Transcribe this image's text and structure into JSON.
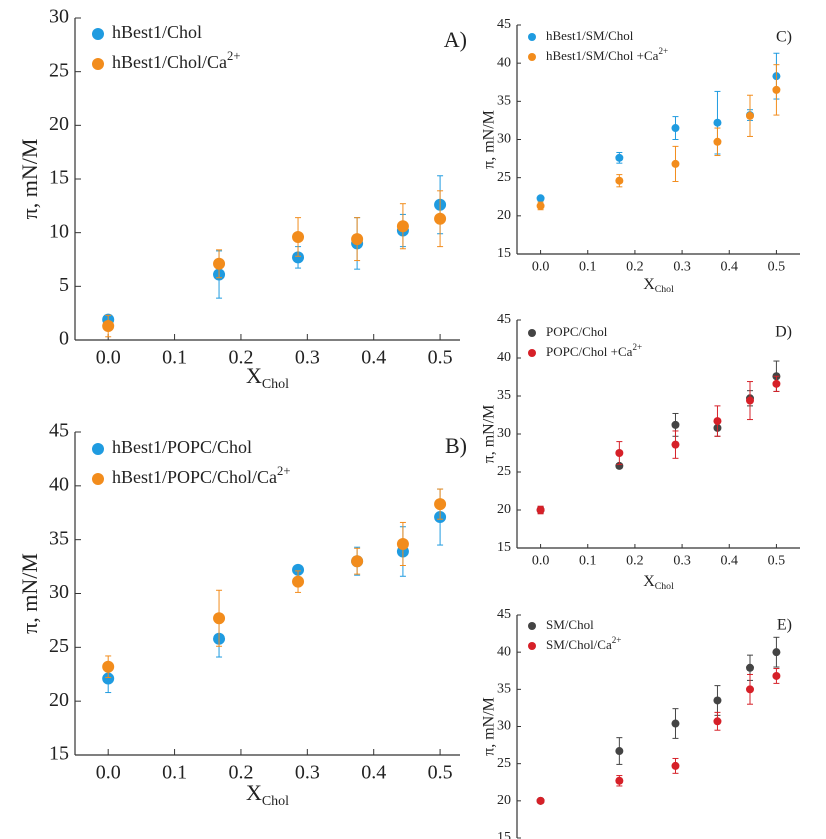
{
  "chart_data": [
    {
      "type": "scatter",
      "annotation": "A)",
      "xlabel": "X",
      "xlabel_sub": "Chol",
      "ylabel": "π, mN/M",
      "x": [
        0,
        0.167,
        0.286,
        0.375,
        0.444,
        0.5
      ],
      "series": [
        {
          "name": "hBest1/Chol",
          "color": "#1f9be0",
          "values": [
            1.9,
            6.1,
            7.7,
            9.0,
            10.2,
            12.6
          ],
          "errors": [
            0.3,
            2.2,
            1.0,
            2.4,
            1.5,
            2.7
          ]
        },
        {
          "name": "hBest1/Chol/Ca",
          "name_sup": "2+",
          "color": "#f28c1c",
          "values": [
            1.3,
            7.1,
            9.6,
            9.4,
            10.6,
            11.3
          ],
          "errors": [
            1.0,
            1.3,
            1.8,
            2.0,
            2.1,
            2.6
          ]
        }
      ],
      "xlim": [
        -0.05,
        0.53
      ],
      "ylim": [
        0,
        30
      ],
      "xticks": [
        {
          "value": 0,
          "label": "0.0"
        },
        0.1,
        0.2,
        0.3,
        0.4,
        0.5
      ],
      "yticks": [
        0,
        5,
        10,
        15,
        20,
        25,
        30
      ]
    },
    {
      "type": "scatter",
      "annotation": "B)",
      "xlabel": "X",
      "xlabel_sub": "Chol",
      "ylabel": "π, mN/M",
      "x": [
        0,
        0.167,
        0.286,
        0.375,
        0.444,
        0.5
      ],
      "series": [
        {
          "name": "hBest1/POPC/Chol",
          "color": "#1f9be0",
          "values": [
            22.1,
            25.8,
            32.2,
            33.0,
            33.9,
            37.1
          ],
          "errors": [
            1.3,
            1.7,
            0.3,
            1.3,
            2.3,
            2.6
          ]
        },
        {
          "name": "hBest1/POPC/Chol/Ca",
          "name_sup": "2+",
          "color": "#f28c1c",
          "values": [
            23.2,
            27.7,
            31.1,
            33.0,
            34.6,
            38.3
          ],
          "errors": [
            1.0,
            2.6,
            1.0,
            1.2,
            2.0,
            1.4
          ]
        }
      ],
      "xlim": [
        -0.05,
        0.53
      ],
      "ylim": [
        15,
        45
      ],
      "xticks": [
        {
          "value": 0,
          "label": "0.0"
        },
        0.1,
        0.2,
        0.3,
        0.4,
        0.5
      ],
      "yticks": [
        15,
        20,
        25,
        30,
        35,
        40,
        45
      ]
    },
    {
      "type": "scatter",
      "annotation": "C)",
      "xlabel": "X",
      "xlabel_sub": "Chol",
      "ylabel": "π, mN/M",
      "x": [
        0,
        0.167,
        0.286,
        0.375,
        0.444,
        0.5
      ],
      "series": [
        {
          "name": "hBest1/SM/Chol",
          "color": "#1f9be0",
          "values": [
            22.3,
            27.6,
            31.5,
            32.2,
            33.2,
            38.3
          ],
          "errors": [
            0.3,
            0.7,
            1.5,
            4.1,
            0.7,
            3.0
          ]
        },
        {
          "name": "hBest1/SM/Chol +Ca",
          "name_sup": "2+",
          "color": "#f28c1c",
          "values": [
            21.3,
            24.6,
            26.8,
            29.7,
            33.1,
            36.5
          ],
          "errors": [
            0.5,
            0.8,
            2.3,
            1.8,
            2.7,
            3.3
          ]
        }
      ],
      "xlim": [
        -0.05,
        0.55
      ],
      "ylim": [
        15,
        45
      ],
      "xticks": [
        {
          "value": 0,
          "label": "0.0"
        },
        0.1,
        0.2,
        0.3,
        0.4,
        0.5
      ],
      "yticks": [
        15,
        20,
        25,
        30,
        35,
        40,
        45
      ]
    },
    {
      "type": "scatter",
      "annotation": "D)",
      "xlabel": "X",
      "xlabel_sub": "Chol",
      "ylabel": "π, mN/M",
      "x": [
        0,
        0.167,
        0.286,
        0.375,
        0.444,
        0.5
      ],
      "series": [
        {
          "name": "POPC/Chol",
          "color": "#444444",
          "values": [
            20.0,
            25.8,
            31.2,
            30.8,
            34.7,
            37.6
          ],
          "errors": [
            0.4,
            0.3,
            1.5,
            1.1,
            1.0,
            2.0
          ]
        },
        {
          "name": "POPC/Chol +Ca",
          "name_sup": "2+",
          "color": "#d62028",
          "values": [
            20.0,
            27.5,
            28.6,
            31.7,
            34.4,
            36.6
          ],
          "errors": [
            0.5,
            1.5,
            1.8,
            2.0,
            2.5,
            1.0
          ]
        }
      ],
      "xlim": [
        -0.05,
        0.55
      ],
      "ylim": [
        15,
        45
      ],
      "xticks": [
        {
          "value": 0,
          "label": "0.0"
        },
        0.1,
        0.2,
        0.3,
        0.4,
        0.5
      ],
      "yticks": [
        15,
        20,
        25,
        30,
        35,
        40,
        45
      ]
    },
    {
      "type": "scatter",
      "annotation": "E)",
      "ylabel": "π, mN/M",
      "x": [
        0,
        0.167,
        0.286,
        0.375,
        0.444,
        0.5
      ],
      "series": [
        {
          "name": "SM/Chol",
          "color": "#444444",
          "values": [
            20.0,
            26.7,
            30.4,
            33.5,
            37.9,
            40.0
          ],
          "errors": [
            0.3,
            1.8,
            2.0,
            2.0,
            1.7,
            2.0
          ]
        },
        {
          "name": "SM/Chol/Ca",
          "name_sup": "2+",
          "color": "#d62028",
          "values": [
            20.0,
            22.7,
            24.7,
            30.7,
            35.0,
            36.8
          ],
          "errors": [
            0.3,
            0.7,
            1.0,
            1.2,
            2.0,
            1.0
          ]
        }
      ],
      "xlim": [
        -0.05,
        0.55
      ],
      "ylim": [
        15,
        45
      ],
      "yticks": [
        15,
        20,
        25,
        30,
        35,
        40,
        45
      ]
    }
  ]
}
